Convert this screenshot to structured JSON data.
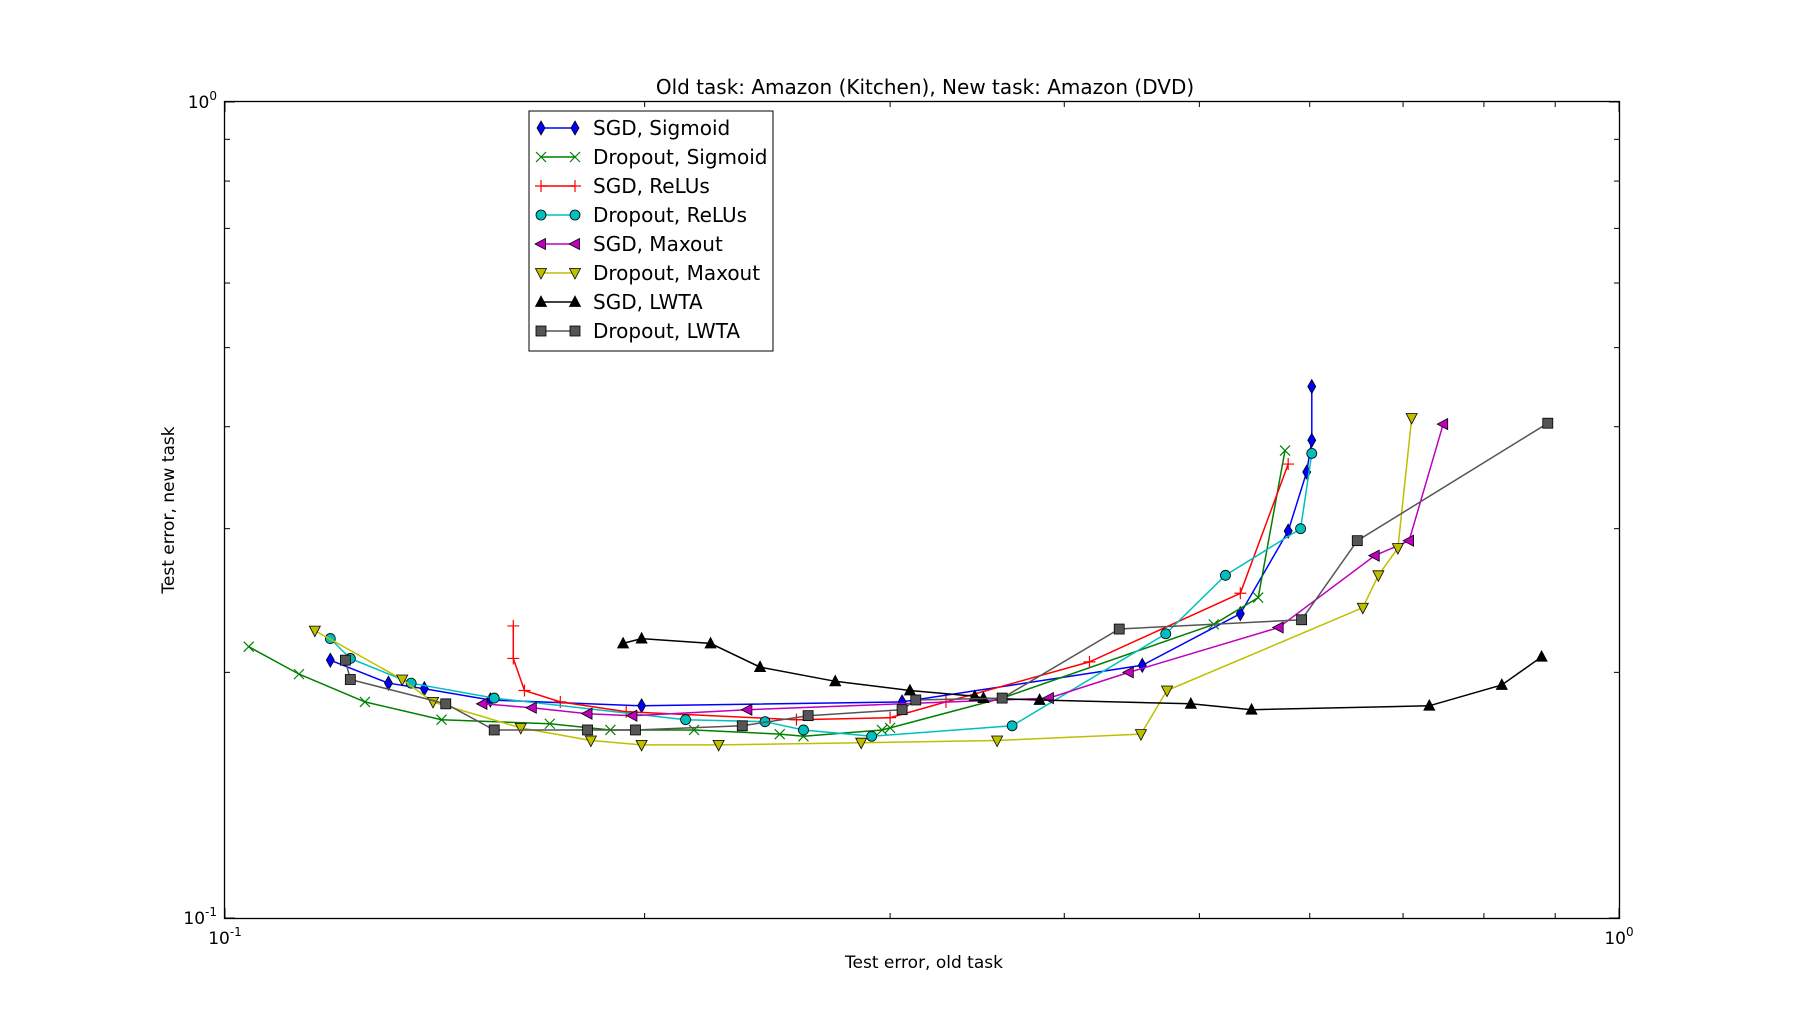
{
  "chart_data": {
    "type": "line",
    "title": "Old task: Amazon (Kitchen), New task: Amazon (DVD)",
    "xlabel": "Test error, old task",
    "ylabel": "Test error, new task",
    "xscale": "log",
    "yscale": "log",
    "xlim": [
      0.1,
      1.0
    ],
    "ylim": [
      0.1,
      1.0
    ],
    "xticks": [
      {
        "value": 0.1,
        "base": "10",
        "exp": "-1"
      },
      {
        "value": 1.0,
        "base": "10",
        "exp": "0"
      }
    ],
    "yticks": [
      {
        "value": 0.1,
        "base": "10",
        "exp": "-1"
      },
      {
        "value": 1.0,
        "base": "10",
        "exp": "0"
      }
    ],
    "grid": false,
    "legend_position": "upper-left",
    "series": [
      {
        "name": "SGD, Sigmoid",
        "color": "#0000ff",
        "marker": "diamond",
        "x": [
          0.119,
          0.131,
          0.139,
          0.155,
          0.199,
          0.306,
          0.455,
          0.535,
          0.579,
          0.597,
          0.602,
          0.602
        ],
        "y": [
          0.207,
          0.194,
          0.191,
          0.185,
          0.182,
          0.184,
          0.204,
          0.236,
          0.298,
          0.352,
          0.385,
          0.448
        ]
      },
      {
        "name": "Dropout, Sigmoid",
        "color": "#008000",
        "marker": "x",
        "x": [
          0.104,
          0.113,
          0.126,
          0.143,
          0.171,
          0.189,
          0.217,
          0.25,
          0.26,
          0.296,
          0.3,
          0.361,
          0.512,
          0.551,
          0.576
        ],
        "y": [
          0.215,
          0.199,
          0.184,
          0.175,
          0.173,
          0.17,
          0.17,
          0.168,
          0.167,
          0.17,
          0.171,
          0.186,
          0.229,
          0.247,
          0.374
        ]
      },
      {
        "name": "SGD, ReLUs",
        "color": "#ff0000",
        "marker": "plus",
        "x": [
          0.161,
          0.161,
          0.164,
          0.174,
          0.194,
          0.257,
          0.3,
          0.329,
          0.417,
          0.535,
          0.579
        ],
        "y": [
          0.228,
          0.208,
          0.19,
          0.184,
          0.179,
          0.175,
          0.176,
          0.184,
          0.206,
          0.25,
          0.36
        ]
      },
      {
        "name": "Dropout, ReLUs",
        "color": "#00bfbf",
        "marker": "circle",
        "x": [
          0.119,
          0.123,
          0.136,
          0.156,
          0.214,
          0.244,
          0.26,
          0.291,
          0.367,
          0.473,
          0.522,
          0.591,
          0.602
        ],
        "y": [
          0.22,
          0.208,
          0.194,
          0.186,
          0.175,
          0.174,
          0.17,
          0.167,
          0.172,
          0.223,
          0.263,
          0.3,
          0.371
        ]
      },
      {
        "name": "SGD, Maxout",
        "color": "#bf00bf",
        "marker": "triangle-left",
        "x": [
          0.153,
          0.166,
          0.182,
          0.196,
          0.237,
          0.39,
          0.445,
          0.57,
          0.668,
          0.707,
          0.748
        ],
        "y": [
          0.183,
          0.181,
          0.178,
          0.177,
          0.18,
          0.186,
          0.2,
          0.227,
          0.278,
          0.29,
          0.403
        ]
      },
      {
        "name": "Dropout, Maxout",
        "color": "#bfbf00",
        "marker": "triangle-down",
        "x": [
          0.116,
          0.134,
          0.141,
          0.163,
          0.183,
          0.199,
          0.226,
          0.286,
          0.358,
          0.454,
          0.474,
          0.655,
          0.672,
          0.694,
          0.71
        ],
        "y": [
          0.225,
          0.196,
          0.184,
          0.171,
          0.165,
          0.163,
          0.163,
          0.164,
          0.165,
          0.168,
          0.19,
          0.24,
          0.263,
          0.284,
          0.41
        ]
      },
      {
        "name": "SGD, LWTA",
        "color": "#000000",
        "marker": "triangle-up",
        "x": [
          0.193,
          0.199,
          0.223,
          0.242,
          0.274,
          0.31,
          0.345,
          0.35,
          0.384,
          0.493,
          0.545,
          0.731,
          0.824,
          0.88
        ],
        "y": [
          0.217,
          0.22,
          0.217,
          0.203,
          0.195,
          0.19,
          0.187,
          0.186,
          0.185,
          0.183,
          0.18,
          0.182,
          0.193,
          0.209
        ]
      },
      {
        "name": "Dropout, LWTA",
        "color": "#555555",
        "marker": "square",
        "x": [
          0.122,
          0.123,
          0.144,
          0.156,
          0.182,
          0.197,
          0.235,
          0.262,
          0.306,
          0.313,
          0.361,
          0.438,
          0.592,
          0.649,
          0.889
        ],
        "y": [
          0.207,
          0.196,
          0.183,
          0.17,
          0.17,
          0.17,
          0.172,
          0.177,
          0.18,
          0.185,
          0.186,
          0.226,
          0.232,
          0.29,
          0.404
        ]
      }
    ]
  }
}
